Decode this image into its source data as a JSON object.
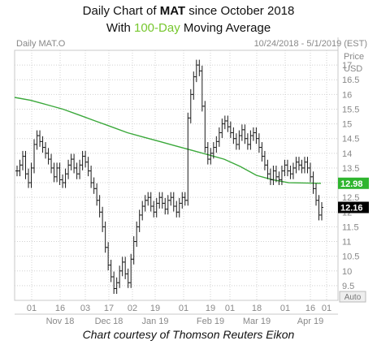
{
  "header": {
    "title_prefix": "Daily Chart of ",
    "ticker": "MAT",
    "title_suffix": " since October 2018",
    "subtitle_prefix": "With ",
    "subtitle_accent": "100-Day",
    "subtitle_suffix": " Moving Average"
  },
  "credit": "Chart courtesy of Thomson Reuters Eikon",
  "colors": {
    "price": "#1a1a1a",
    "ma": "#3aa83a",
    "ma_badge": "#2fb52f",
    "last_badge": "#000000",
    "grid": "#d0d0d0",
    "text": "#888888"
  },
  "chart_data": {
    "type": "ohlc",
    "panel_label": "Daily MAT.O",
    "date_range": "10/24/2018 - 5/1/2019 (EST)",
    "y_axis_title": [
      "Price",
      "USD"
    ],
    "ylim": [
      9,
      17.5
    ],
    "yticks": [
      9.5,
      10,
      10.5,
      11,
      11.5,
      12,
      12.5,
      13,
      13.5,
      14,
      14.5,
      15,
      15.5,
      16,
      16.5,
      17
    ],
    "ytick_labels": [
      "9.5",
      "10",
      "10.5",
      "11",
      "11.5",
      "12",
      "12.5",
      "13",
      "13.5",
      "14",
      "14.5",
      "15",
      "15.5",
      "16",
      "16.5",
      "17"
    ],
    "x_day_labels": [
      "01",
      "16",
      "03",
      "17",
      "02",
      "19",
      "01",
      "19",
      "01",
      "18",
      "01",
      "16",
      "01"
    ],
    "x_month_labels": [
      "Nov 18",
      "Dec 18",
      "Jan 19",
      "Feb 19",
      "Mar 19",
      "Apr 19"
    ],
    "auto_label": "Auto",
    "series": [
      {
        "name": "MAT.O",
        "values": [
          13.4,
          13.6,
          13.9,
          13.3,
          13.0,
          13.5,
          14.3,
          14.6,
          14.4,
          14.2,
          14.0,
          13.8,
          13.5,
          13.2,
          13.5,
          13.1,
          13.0,
          13.3,
          13.6,
          13.8,
          13.5,
          13.3,
          13.6,
          13.9,
          13.7,
          13.4,
          13.0,
          12.8,
          12.4,
          12.0,
          11.5,
          10.8,
          10.2,
          9.8,
          9.4,
          9.6,
          10.0,
          10.3,
          9.9,
          9.6,
          10.4,
          11.0,
          11.5,
          11.9,
          12.2,
          12.4,
          12.5,
          12.2,
          12.0,
          12.3,
          12.5,
          12.3,
          12.1,
          12.4,
          12.5,
          12.2,
          12.0,
          12.3,
          12.5,
          12.4,
          15.2,
          16.0,
          16.6,
          17.0,
          16.8,
          15.6,
          14.2,
          13.8,
          14.0,
          14.2,
          14.4,
          14.7,
          15.0,
          15.1,
          14.9,
          14.7,
          14.5,
          14.3,
          14.6,
          14.8,
          14.5,
          14.3,
          14.6,
          14.7,
          14.5,
          14.2,
          13.9,
          13.6,
          13.3,
          13.1,
          13.4,
          13.2,
          13.1,
          13.4,
          13.6,
          13.4,
          13.3,
          13.5,
          13.7,
          13.6,
          13.5,
          13.7,
          13.5,
          13.2,
          12.8,
          12.4,
          11.9,
          12.16
        ]
      },
      {
        "name": "100-Day Moving Average",
        "values": [
          15.9,
          15.8,
          15.65,
          15.5,
          15.3,
          15.1,
          14.9,
          14.7,
          14.55,
          14.4,
          14.25,
          14.1,
          13.95,
          13.8,
          13.55,
          13.25,
          13.1,
          13.0,
          12.99,
          12.98
        ]
      }
    ],
    "badges": [
      {
        "label": "12.98",
        "value": 12.98,
        "series": "100-Day Moving Average"
      },
      {
        "label": "12.16",
        "value": 12.16,
        "series": "MAT.O"
      }
    ]
  }
}
